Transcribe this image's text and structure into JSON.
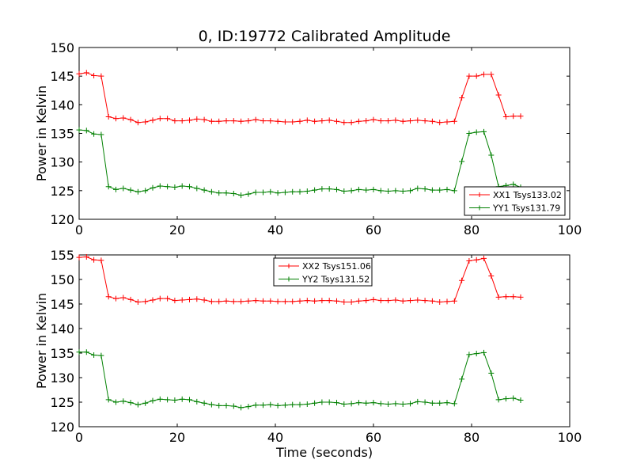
{
  "figure_title": "0, ID:19772 Calibrated Amplitude",
  "colors": {
    "red": "#ff0000",
    "green": "#008000",
    "axes": "#000000",
    "background": "#ffffff"
  },
  "chart_data": [
    {
      "type": "line",
      "title": "0, ID:19772 Calibrated Amplitude",
      "xlabel": "",
      "ylabel": "Power in Kelvin",
      "xlim": [
        0,
        100
      ],
      "ylim": [
        120,
        150
      ],
      "xticks": [
        "0",
        "20",
        "40",
        "60",
        "80",
        "100"
      ],
      "yticks": [
        "120",
        "125",
        "130",
        "135",
        "140",
        "145",
        "150"
      ],
      "legend_position": "lower-right",
      "grid": false,
      "x": [
        0,
        1.5,
        3,
        4.5,
        6,
        7.5,
        9,
        10.5,
        12,
        13.5,
        15,
        16.5,
        18,
        19.5,
        21,
        22.5,
        24,
        25.5,
        27,
        28.5,
        30,
        31.5,
        33,
        34.5,
        36,
        37.5,
        39,
        40.5,
        42,
        43.5,
        45,
        46.5,
        48,
        49.5,
        51,
        52.5,
        54,
        55.5,
        57,
        58.5,
        60,
        61.5,
        63,
        64.5,
        66,
        67.5,
        69,
        70.5,
        72,
        73.5,
        75,
        76.5,
        78,
        79.5,
        81,
        82.5,
        84,
        85.5,
        87,
        88.5,
        90
      ],
      "series": [
        {
          "name": "XX1 Tsys133.02",
          "color": "#ff0000",
          "values": [
            145.4,
            145.6,
            145.1,
            145.0,
            137.9,
            137.6,
            137.7,
            137.4,
            136.9,
            137.0,
            137.3,
            137.6,
            137.6,
            137.2,
            137.2,
            137.3,
            137.5,
            137.4,
            137.1,
            137.1,
            137.2,
            137.2,
            137.1,
            137.2,
            137.4,
            137.2,
            137.2,
            137.1,
            137.0,
            137.0,
            137.1,
            137.3,
            137.1,
            137.2,
            137.3,
            137.1,
            136.9,
            136.9,
            137.1,
            137.2,
            137.4,
            137.2,
            137.2,
            137.3,
            137.1,
            137.2,
            137.3,
            137.2,
            137.1,
            136.9,
            137.0,
            137.1,
            141.2,
            145.0,
            145.0,
            145.3,
            145.3,
            141.7,
            137.9,
            138.0,
            138.0
          ]
        },
        {
          "name": "YY1 Tsys131.79",
          "color": "#008000",
          "values": [
            135.6,
            135.5,
            134.9,
            134.8,
            125.7,
            125.2,
            125.4,
            125.1,
            124.8,
            125.0,
            125.5,
            125.8,
            125.7,
            125.6,
            125.8,
            125.7,
            125.4,
            125.1,
            124.8,
            124.6,
            124.6,
            124.5,
            124.2,
            124.4,
            124.7,
            124.7,
            124.8,
            124.6,
            124.7,
            124.8,
            124.8,
            124.9,
            125.1,
            125.3,
            125.3,
            125.2,
            124.9,
            125.0,
            125.2,
            125.1,
            125.2,
            125.0,
            124.9,
            125.0,
            124.9,
            125.0,
            125.4,
            125.3,
            125.1,
            125.1,
            125.2,
            125.0,
            130.1,
            135.0,
            135.2,
            135.3,
            131.2,
            125.7,
            125.9,
            126.1,
            125.6
          ]
        }
      ]
    },
    {
      "type": "line",
      "title": "",
      "xlabel": "Time (seconds)",
      "ylabel": "Power in Kelvin",
      "xlim": [
        0,
        100
      ],
      "ylim": [
        120,
        155
      ],
      "xticks": [
        "0",
        "20",
        "40",
        "60",
        "80",
        "100"
      ],
      "yticks": [
        "120",
        "125",
        "130",
        "135",
        "140",
        "145",
        "150",
        "155"
      ],
      "legend_position": "upper-center",
      "grid": false,
      "x": [
        0,
        1.5,
        3,
        4.5,
        6,
        7.5,
        9,
        10.5,
        12,
        13.5,
        15,
        16.5,
        18,
        19.5,
        21,
        22.5,
        24,
        25.5,
        27,
        28.5,
        30,
        31.5,
        33,
        34.5,
        36,
        37.5,
        39,
        40.5,
        42,
        43.5,
        45,
        46.5,
        48,
        49.5,
        51,
        52.5,
        54,
        55.5,
        57,
        58.5,
        60,
        61.5,
        63,
        64.5,
        66,
        67.5,
        69,
        70.5,
        72,
        73.5,
        75,
        76.5,
        78,
        79.5,
        81,
        82.5,
        84,
        85.5,
        87,
        88.5,
        90
      ],
      "series": [
        {
          "name": "XX2 Tsys151.06",
          "color": "#ff0000",
          "values": [
            154.5,
            154.6,
            154.0,
            153.9,
            146.5,
            146.1,
            146.3,
            145.9,
            145.4,
            145.5,
            145.8,
            146.1,
            146.1,
            145.7,
            145.8,
            145.9,
            146.0,
            145.8,
            145.5,
            145.5,
            145.6,
            145.5,
            145.5,
            145.6,
            145.7,
            145.6,
            145.6,
            145.5,
            145.5,
            145.5,
            145.6,
            145.7,
            145.6,
            145.7,
            145.7,
            145.6,
            145.4,
            145.4,
            145.6,
            145.7,
            145.9,
            145.7,
            145.7,
            145.8,
            145.6,
            145.7,
            145.8,
            145.7,
            145.6,
            145.4,
            145.5,
            145.6,
            149.8,
            153.8,
            154.0,
            154.3,
            150.7,
            146.4,
            146.5,
            146.5,
            146.4
          ]
        },
        {
          "name": "YY2 Tsys131.52",
          "color": "#008000",
          "values": [
            135.2,
            135.2,
            134.6,
            134.5,
            125.5,
            125.0,
            125.2,
            124.9,
            124.5,
            124.8,
            125.3,
            125.6,
            125.5,
            125.4,
            125.6,
            125.5,
            125.1,
            124.8,
            124.5,
            124.3,
            124.3,
            124.2,
            123.9,
            124.1,
            124.4,
            124.4,
            124.5,
            124.3,
            124.4,
            124.5,
            124.5,
            124.6,
            124.8,
            125.0,
            125.0,
            124.9,
            124.6,
            124.7,
            124.9,
            124.8,
            124.9,
            124.7,
            124.6,
            124.7,
            124.6,
            124.7,
            125.1,
            125.0,
            124.8,
            124.8,
            124.9,
            124.7,
            129.7,
            134.7,
            134.9,
            135.1,
            130.9,
            125.5,
            125.7,
            125.8,
            125.4
          ]
        }
      ]
    }
  ]
}
